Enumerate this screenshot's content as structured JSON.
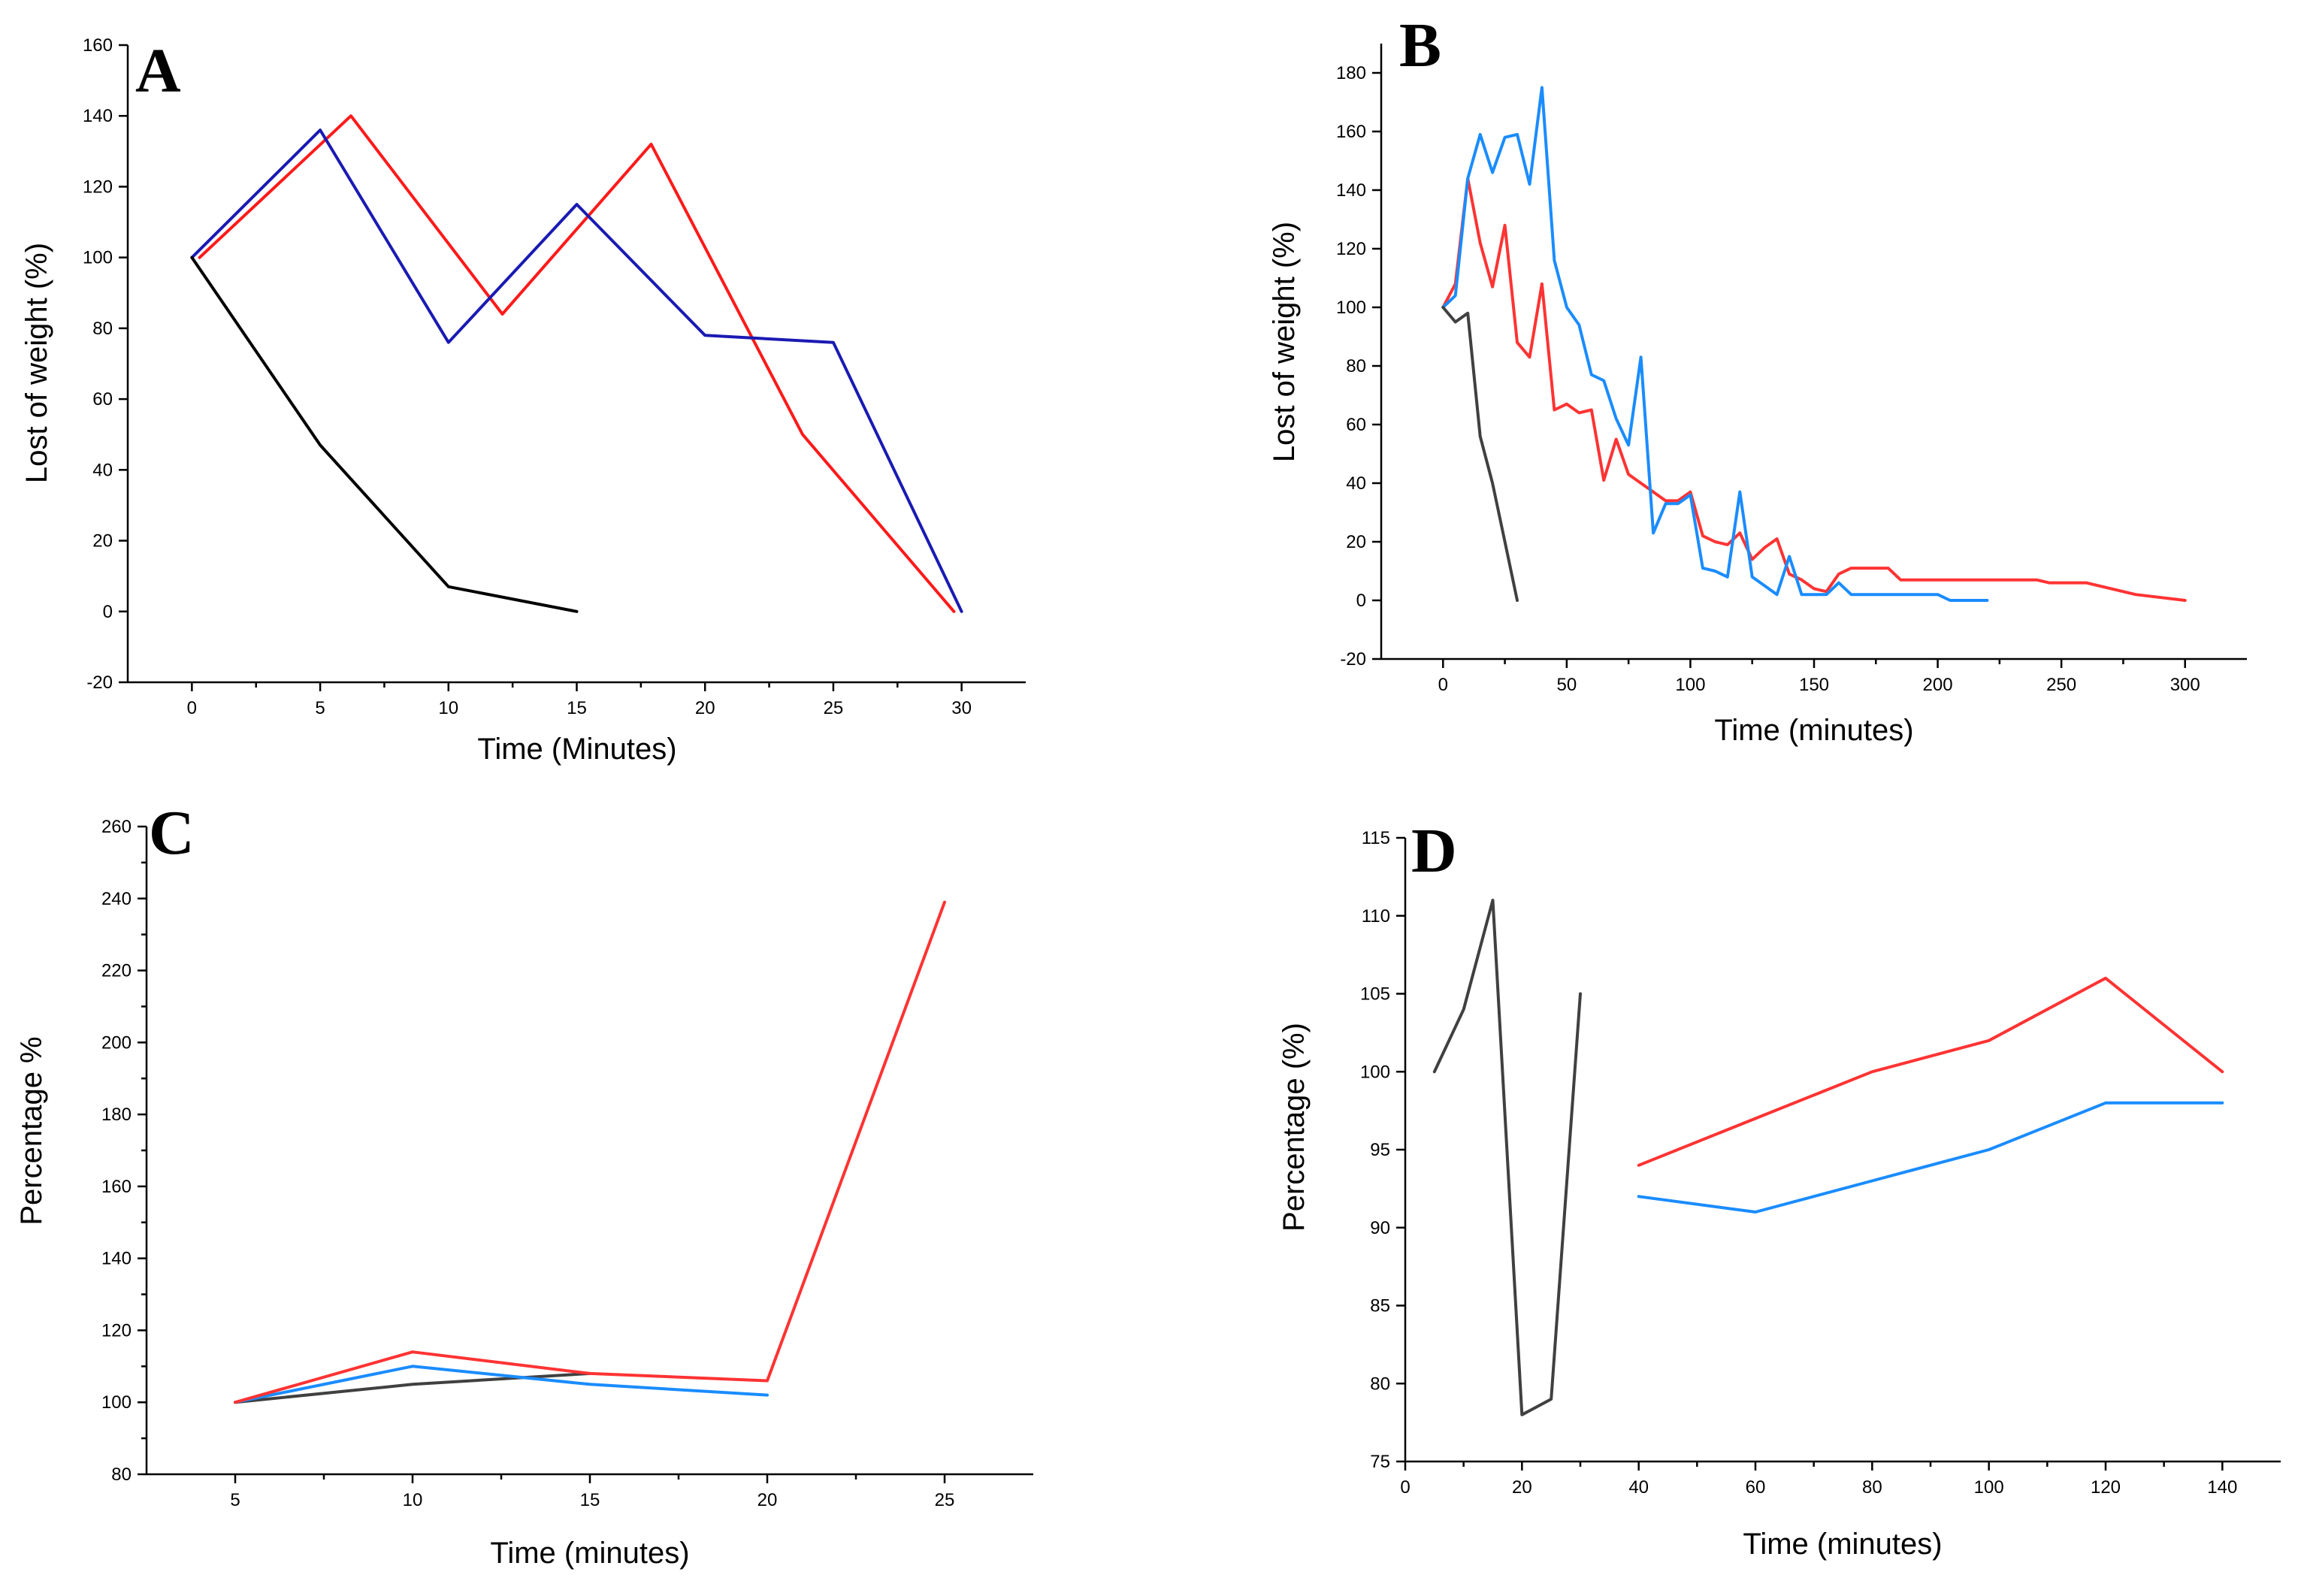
{
  "chart_data": [
    {
      "panel": "A",
      "type": "line",
      "title": "",
      "xlabel": "Time (Minutes)",
      "ylabel": "Lost of weight (%)",
      "xlim": [
        -2.5,
        32.5
      ],
      "ylim": [
        -20,
        160
      ],
      "xticks": [
        0,
        5,
        10,
        15,
        20,
        25,
        30
      ],
      "yticks": [
        -20,
        0,
        20,
        40,
        60,
        80,
        100,
        120,
        140,
        160
      ],
      "series": [
        {
          "name": "red",
          "color": "#ff1a1a",
          "points": [
            [
              0.3,
              100
            ],
            [
              6.2,
              140
            ],
            [
              12.1,
              84
            ],
            [
              17.9,
              132
            ],
            [
              23.8,
              50
            ],
            [
              29.7,
              0
            ]
          ]
        },
        {
          "name": "blue",
          "color": "#1a1ab3",
          "points": [
            [
              0,
              100
            ],
            [
              5,
              136
            ],
            [
              10,
              76
            ],
            [
              15,
              115
            ],
            [
              20,
              78
            ],
            [
              25,
              76
            ],
            [
              30,
              0
            ]
          ]
        },
        {
          "name": "black",
          "color": "#000000",
          "points": [
            [
              0,
              100
            ],
            [
              5,
              47
            ],
            [
              10,
              7
            ],
            [
              15,
              0
            ]
          ]
        }
      ]
    },
    {
      "panel": "B",
      "type": "line",
      "title": "",
      "xlabel": "Time (minutes)",
      "ylabel": "Lost of weight (%)",
      "xlim": [
        -25,
        325
      ],
      "ylim": [
        -20,
        190
      ],
      "xticks": [
        0,
        50,
        100,
        150,
        200,
        250,
        300
      ],
      "yticks": [
        -20,
        0,
        20,
        40,
        60,
        80,
        100,
        120,
        140,
        160,
        180
      ],
      "series": [
        {
          "name": "red",
          "color": "#ff3333",
          "points": [
            [
              0,
              100
            ],
            [
              5,
              108
            ],
            [
              10,
              144
            ],
            [
              15,
              122
            ],
            [
              20,
              107
            ],
            [
              25,
              128
            ],
            [
              30,
              88
            ],
            [
              35,
              83
            ],
            [
              40,
              108
            ],
            [
              45,
              65
            ],
            [
              50,
              67
            ],
            [
              55,
              64
            ],
            [
              60,
              65
            ],
            [
              65,
              41
            ],
            [
              70,
              55
            ],
            [
              75,
              43
            ],
            [
              80,
              40
            ],
            [
              85,
              37
            ],
            [
              90,
              34
            ],
            [
              95,
              34
            ],
            [
              100,
              37
            ],
            [
              105,
              22
            ],
            [
              110,
              20
            ],
            [
              115,
              19
            ],
            [
              120,
              23
            ],
            [
              125,
              14
            ],
            [
              130,
              18
            ],
            [
              135,
              21
            ],
            [
              140,
              9
            ],
            [
              145,
              7
            ],
            [
              150,
              4
            ],
            [
              155,
              3
            ],
            [
              160,
              9
            ],
            [
              165,
              11
            ],
            [
              170,
              11
            ],
            [
              180,
              11
            ],
            [
              185,
              7
            ],
            [
              200,
              7
            ],
            [
              240,
              7
            ],
            [
              245,
              6
            ],
            [
              260,
              6
            ],
            [
              280,
              2
            ],
            [
              300,
              0
            ]
          ]
        },
        {
          "name": "blue",
          "color": "#1a8cff",
          "points": [
            [
              0,
              100
            ],
            [
              5,
              104
            ],
            [
              10,
              144
            ],
            [
              15,
              159
            ],
            [
              20,
              146
            ],
            [
              25,
              158
            ],
            [
              30,
              159
            ],
            [
              35,
              142
            ],
            [
              40,
              175
            ],
            [
              45,
              116
            ],
            [
              50,
              100
            ],
            [
              55,
              94
            ],
            [
              60,
              77
            ],
            [
              65,
              75
            ],
            [
              70,
              62
            ],
            [
              75,
              53
            ],
            [
              80,
              83
            ],
            [
              85,
              23
            ],
            [
              90,
              33
            ],
            [
              95,
              33
            ],
            [
              100,
              36
            ],
            [
              105,
              11
            ],
            [
              110,
              10
            ],
            [
              115,
              8
            ],
            [
              120,
              37
            ],
            [
              125,
              8
            ],
            [
              130,
              5
            ],
            [
              135,
              2
            ],
            [
              140,
              15
            ],
            [
              145,
              2
            ],
            [
              150,
              2
            ],
            [
              155,
              2
            ],
            [
              160,
              6
            ],
            [
              165,
              2
            ],
            [
              200,
              2
            ],
            [
              205,
              0
            ],
            [
              220,
              0
            ]
          ]
        },
        {
          "name": "gray",
          "color": "#404040",
          "points": [
            [
              0,
              100
            ],
            [
              5,
              95
            ],
            [
              10,
              98
            ],
            [
              15,
              56
            ],
            [
              20,
              40
            ],
            [
              25,
              20
            ],
            [
              30,
              0
            ]
          ]
        }
      ]
    },
    {
      "panel": "C",
      "type": "line",
      "title": "",
      "xlabel": "Time (minutes)",
      "ylabel": "Percentage %",
      "xlim": [
        2.5,
        27.5
      ],
      "ylim": [
        80,
        260
      ],
      "xticks": [
        5,
        10,
        15,
        20,
        25
      ],
      "yticks": [
        80,
        100,
        120,
        140,
        160,
        180,
        200,
        220,
        240,
        260
      ],
      "series": [
        {
          "name": "gray",
          "color": "#404040",
          "points": [
            [
              5,
              100
            ],
            [
              10,
              105
            ],
            [
              15,
              108
            ]
          ]
        },
        {
          "name": "blue",
          "color": "#1a8cff",
          "points": [
            [
              5,
              100
            ],
            [
              10,
              110
            ],
            [
              15,
              105
            ],
            [
              20,
              102
            ]
          ]
        },
        {
          "name": "red",
          "color": "#ff3333",
          "points": [
            [
              5,
              100
            ],
            [
              10,
              114
            ],
            [
              15,
              108
            ],
            [
              20,
              106
            ],
            [
              25,
              239
            ]
          ]
        }
      ]
    },
    {
      "panel": "D",
      "type": "line",
      "title": "",
      "xlabel": "Time (minutes)",
      "ylabel": "Percentage (%)",
      "xlim": [
        0,
        150
      ],
      "ylim": [
        75,
        115
      ],
      "xticks": [
        0,
        20,
        40,
        60,
        80,
        100,
        120,
        140
      ],
      "yticks": [
        75,
        80,
        85,
        90,
        95,
        100,
        105,
        110,
        115
      ],
      "series": [
        {
          "name": "gray",
          "color": "#404040",
          "points": [
            [
              5,
              100
            ],
            [
              10,
              104
            ],
            [
              15,
              111
            ],
            [
              20,
              78
            ],
            [
              25,
              79
            ],
            [
              30,
              105
            ]
          ]
        },
        {
          "name": "red",
          "color": "#ff3333",
          "points": [
            [
              40,
              94
            ],
            [
              60,
              97
            ],
            [
              80,
              100
            ],
            [
              100,
              102
            ],
            [
              120,
              106
            ],
            [
              140,
              100
            ]
          ]
        },
        {
          "name": "blue",
          "color": "#1a8cff",
          "points": [
            [
              40,
              92
            ],
            [
              60,
              91
            ],
            [
              80,
              93
            ],
            [
              100,
              95
            ],
            [
              120,
              98
            ],
            [
              140,
              98
            ]
          ]
        }
      ]
    }
  ]
}
